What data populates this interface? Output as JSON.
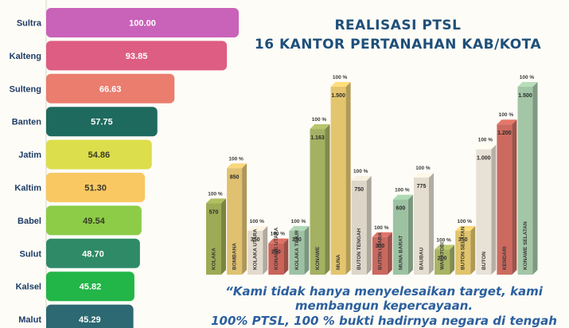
{
  "chart_data": [
    {
      "type": "bar",
      "orientation": "horizontal",
      "categories": [
        "Sultra",
        "Kalteng",
        "Sulteng",
        "Banten",
        "Jatim",
        "Kaltim",
        "Babel",
        "Sulut",
        "Kalsel",
        "Malut"
      ],
      "values": [
        100.0,
        93.85,
        66.63,
        57.75,
        54.86,
        51.3,
        49.54,
        48.7,
        45.82,
        45.29
      ],
      "value_labels": [
        "100.00",
        "93.85",
        "66.63",
        "57.75",
        "54.86",
        "51.30",
        "49.54",
        "48.70",
        "45.82",
        "45.29"
      ],
      "colors": [
        "#c962b9",
        "#de5d82",
        "#ea7d6e",
        "#1e6a5f",
        "#dcde4c",
        "#f9c863",
        "#8ccc47",
        "#2f8a68",
        "#22b547",
        "#2c6972"
      ],
      "xlim": [
        0,
        100
      ]
    },
    {
      "type": "bar",
      "title": "REALISASI PTSL",
      "subtitle": "16 KANTOR PERTANAHAN KAB/KOTA",
      "categories": [
        "KOLAKA",
        "BOMBANA",
        "KOLAKA UTARA",
        "KONAWE UTARA",
        "KOLAKA TIMUR",
        "KONAWE",
        "MUNA",
        "BUTON TENGAH",
        "BUTON UTARA",
        "MUNA BARAT",
        "BAUBAU",
        "WAKATOBI",
        "BUTON SELATAN",
        "BUTON",
        "KENDARI",
        "KONAWE SELATAN"
      ],
      "values": [
        570,
        850,
        350,
        250,
        350,
        1163,
        1500,
        750,
        300,
        600,
        775,
        200,
        350,
        1000,
        1200,
        1500
      ],
      "value_labels": [
        "570",
        "850",
        "350",
        "250",
        "350",
        "1.163",
        "1.500",
        "750",
        "300",
        "600",
        "775",
        "200",
        "350",
        "1.000",
        "1.200",
        "1.500"
      ],
      "percent_labels": [
        "100 %",
        "100 %",
        "100 %",
        "100 %",
        "100 %",
        "100 %",
        "100 %",
        "100 %",
        "100 %",
        "100 %",
        "100 %",
        "100 %",
        "100 %",
        "100 %",
        "100 %",
        "100 %"
      ],
      "colors": [
        "#9dab55",
        "#e0c170",
        "#e2dacc",
        "#c8645a",
        "#9ec1a3",
        "#a4b162",
        "#e3c56e",
        "#ddd6c8",
        "#c9685e",
        "#9cc2a2",
        "#e4ddd0",
        "#a8b463",
        "#e1c46b",
        "#e8e1d6",
        "#cc6a5f",
        "#a3c6a6"
      ],
      "ylim": [
        0,
        1500
      ]
    }
  ],
  "quote": {
    "line1": "“Kami tidak hanya menyelesaikan target, kami",
    "line2": "membangun kepercayaan.",
    "line3": "100% PTSL, 100 % bukti hadirnya negara di tengah"
  }
}
